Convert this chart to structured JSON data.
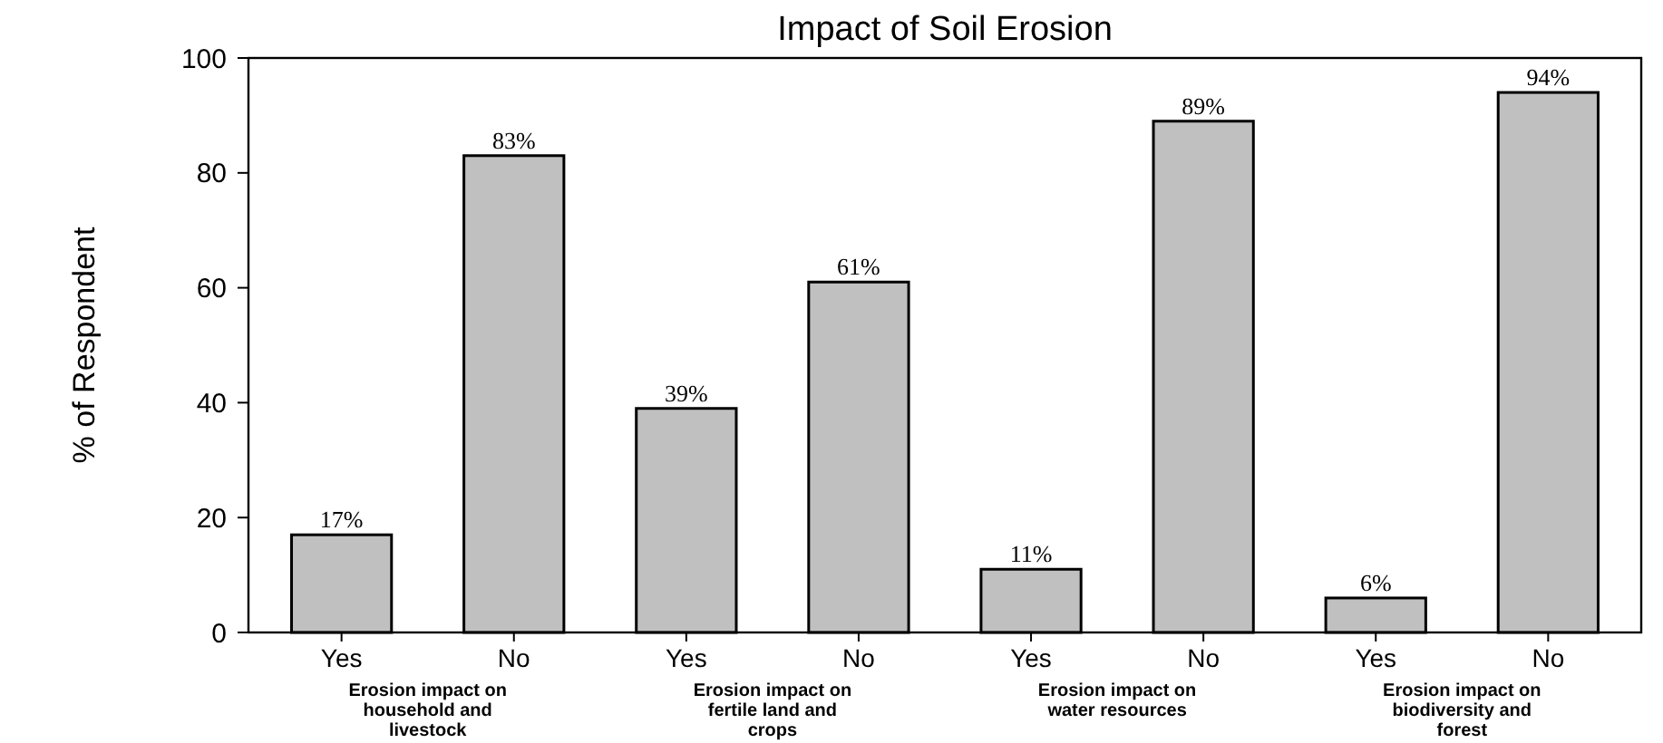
{
  "chart_data": {
    "type": "bar",
    "title": "Impact of Soil Erosion",
    "ylabel": "% of Respondent",
    "categories": [
      "Yes",
      "No",
      "Yes",
      "No",
      "Yes",
      "No",
      "Yes",
      "No"
    ],
    "values": [
      17,
      83,
      39,
      61,
      11,
      89,
      6,
      94
    ],
    "value_labels": [
      "17%",
      "83%",
      "39%",
      "61%",
      "11%",
      "89%",
      "6%",
      "94%"
    ],
    "color": "#c0c0c0",
    "ylim": [
      0,
      100
    ],
    "yticks": [
      0,
      20,
      40,
      60,
      80,
      100
    ],
    "grid": false,
    "annotations": [
      "Erosion impact on household and livestock",
      "Erosion impact on fertile land and crops",
      "Erosion impact on water resources",
      "Erosion impact on biodiversity and forest"
    ]
  }
}
